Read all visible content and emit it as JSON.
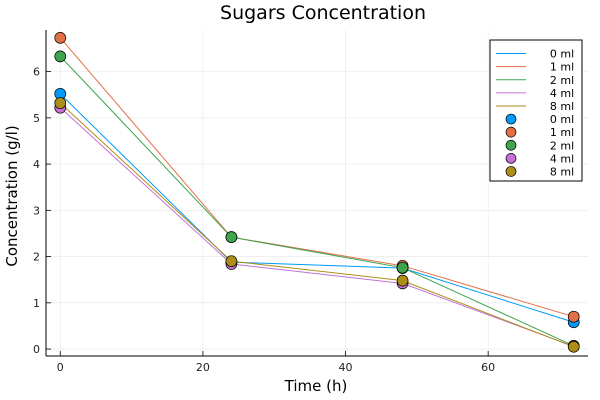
{
  "chart_data": {
    "type": "scatter",
    "title": "Sugars Concentration",
    "xlabel": "Time (h)",
    "ylabel": "Concentration (g/l)",
    "xlim": [
      -2,
      74
    ],
    "ylim": [
      -0.15,
      6.9
    ],
    "xticks": [
      0,
      20,
      40,
      60
    ],
    "yticks": [
      0,
      1,
      2,
      3,
      4,
      5,
      6
    ],
    "grid": true,
    "legend_position": "top-right",
    "x": [
      0,
      24,
      48,
      72
    ],
    "series": [
      {
        "name": "0 ml",
        "color": "#009AFA",
        "values": [
          5.52,
          1.88,
          1.75,
          0.58
        ]
      },
      {
        "name": "1 ml",
        "color": "#E36F47",
        "values": [
          6.73,
          2.42,
          1.8,
          0.7
        ]
      },
      {
        "name": "2 ml",
        "color": "#3EA44E",
        "values": [
          6.33,
          2.42,
          1.76,
          0.07
        ]
      },
      {
        "name": "4 ml",
        "color": "#C371D2",
        "values": [
          5.22,
          1.84,
          1.42,
          0.06
        ]
      },
      {
        "name": "8 ml",
        "color": "#AC8E18",
        "values": [
          5.32,
          1.9,
          1.48,
          0.05
        ]
      }
    ]
  }
}
